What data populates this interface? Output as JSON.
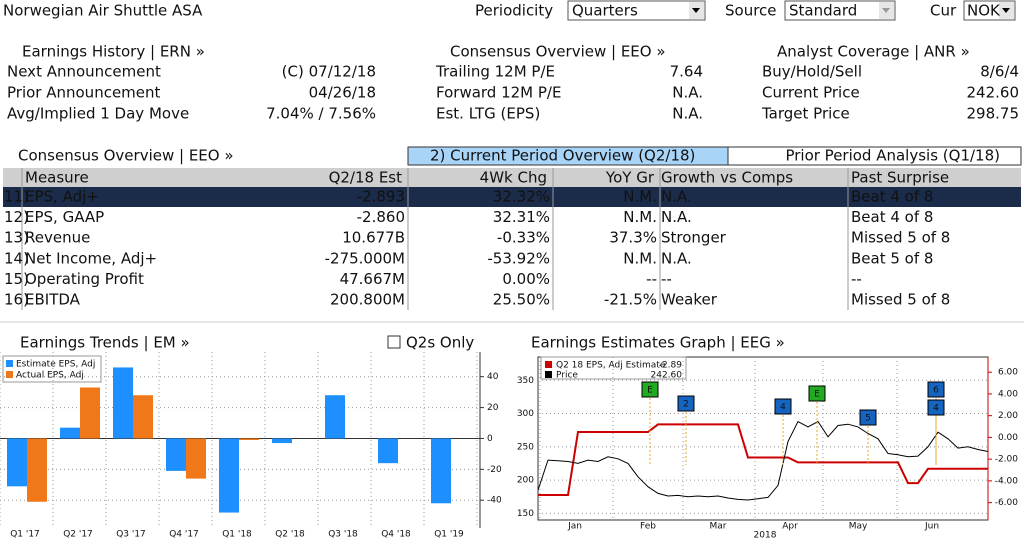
{
  "header": {
    "title": "Norwegian Air Shuttle ASA",
    "periodicity_label": "Periodicity",
    "periodicity": "Quarters",
    "source_label": "Source",
    "source": "Standard",
    "cur_label": "Cur",
    "cur": "NOK"
  },
  "sections": [
    {
      "title": "Earnings History | ERN »",
      "rows": [
        [
          "Next Announcement",
          "(C) 07/12/18"
        ],
        [
          "Prior Announcement",
          "04/26/18"
        ],
        [
          "Avg/Implied 1 Day Move",
          "7.04% / 7.56%"
        ]
      ]
    },
    {
      "title": "Consensus Overview | EEO »",
      "rows": [
        [
          "Trailing 12M P/E",
          "7.64"
        ],
        [
          "Forward 12M P/E",
          "N.A."
        ],
        [
          "Est. LTG (EPS)",
          "N.A."
        ]
      ]
    },
    {
      "title": "Analyst Coverage | ANR »",
      "rows": [
        [
          "Buy/Hold/Sell",
          "8/6/4"
        ],
        [
          "Current Price",
          "242.60"
        ],
        [
          "Target Price",
          "298.75"
        ]
      ]
    }
  ],
  "table": {
    "title": "Consensus Overview | EEO »",
    "tabs": [
      "2) Current Period Overview (Q2/18)",
      "Prior Period Analysis (Q1/18)"
    ],
    "columns": [
      "Measure",
      "Q2/18 Est",
      "4Wk Chg",
      "YoY Gr",
      "Growth vs Comps",
      "Past Surprise"
    ],
    "rows": [
      {
        "num": "11)",
        "cells": [
          "EPS, Adj+",
          "-2.893",
          "32.32%",
          "N.M.",
          "N.A.",
          "Beat 4 of 8"
        ]
      },
      {
        "num": "12)",
        "cells": [
          "EPS, GAAP",
          "-2.860",
          "32.31%",
          "N.M.",
          "N.A.",
          "Beat 4 of 8"
        ]
      },
      {
        "num": "13)",
        "cells": [
          "Revenue",
          "10.677B",
          "-0.33%",
          "37.3%",
          "Stronger",
          "Missed 5 of 8"
        ]
      },
      {
        "num": "14)",
        "cells": [
          "Net Income, Adj+",
          "-275.000M",
          "-53.92%",
          "N.M.",
          "N.A.",
          "Beat 5 of 8"
        ]
      },
      {
        "num": "15)",
        "cells": [
          "Operating Profit",
          "47.667M",
          "0.00%",
          "--",
          "--",
          "--"
        ]
      },
      {
        "num": "16)",
        "cells": [
          "EBITDA",
          "200.800M",
          "25.50%",
          "-21.5%",
          "Weaker",
          "Missed 5 of 8"
        ]
      }
    ]
  },
  "chart_data": [
    {
      "type": "bar",
      "title": "Earnings Trends | EM »",
      "option": "Q2s Only",
      "categories": [
        "Q1 '17",
        "Q2 '17",
        "Q3 '17",
        "Q4 '17",
        "Q1 '18",
        "Q2 '18",
        "Q3 '18",
        "Q4 '18",
        "Q1 '19"
      ],
      "series": [
        {
          "name": "Estimate EPS, Adj",
          "color": "#1e8fff",
          "values": [
            -31,
            7,
            46,
            -21,
            -48,
            -3,
            28,
            -16,
            -42
          ]
        },
        {
          "name": "Actual EPS, Adj",
          "color": "#f07818",
          "values": [
            -41,
            33,
            28,
            -26,
            -1,
            null,
            null,
            null,
            null
          ]
        }
      ],
      "ylim": [
        -58,
        56
      ],
      "yticks": [
        40,
        20,
        0,
        -20,
        -40
      ],
      "grid": true
    },
    {
      "type": "line",
      "title": "Earnings Estimates Graph | EEG »",
      "xtick_labels": [
        "Jan",
        "Feb",
        "Mar",
        "Apr",
        "May",
        "Jun"
      ],
      "year_label": "2018",
      "series": [
        {
          "name": "Q2 18 EPS, Adj Estimate",
          "legend_value": "-2.89",
          "color": "#cc0000",
          "axis": "y2",
          "values": [
            -5.3,
            -5.3,
            -5.3,
            -5.3,
            0.5,
            0.5,
            0.5,
            0.5,
            0.5,
            0.5,
            0.5,
            0.5,
            1.2,
            1.2,
            1.2,
            1.2,
            1.2,
            1.2,
            1.2,
            1.2,
            1.2,
            -1.85,
            -1.85,
            -1.85,
            -1.85,
            -1.85,
            -2.3,
            -2.3,
            -2.3,
            -2.3,
            -2.3,
            -2.3,
            -2.3,
            -2.3,
            -2.3,
            -2.3,
            -2.3,
            -4.2,
            -4.2,
            -2.89,
            -2.89,
            -2.89,
            -2.89,
            -2.89,
            -2.89,
            -2.89
          ]
        },
        {
          "name": "Price",
          "legend_value": "242.60",
          "color": "#000000",
          "values": [
            185,
            230,
            229,
            228,
            225,
            230,
            228,
            235,
            232,
            225,
            205,
            190,
            180,
            176,
            177,
            175,
            176,
            175,
            176,
            173,
            171,
            170,
            172,
            174,
            192,
            258,
            288,
            280,
            288,
            265,
            282,
            284,
            280,
            270,
            262,
            240,
            238,
            235,
            236,
            250,
            272,
            262,
            248,
            250,
            246,
            243
          ]
        }
      ],
      "ylim": [
        140,
        385
      ],
      "yticks": [
        150,
        200,
        250,
        300,
        350
      ],
      "y2lim": [
        -7.6,
        7.4
      ],
      "y2ticks": [
        {
          "value": 6,
          "label": "6.00"
        },
        {
          "value": 4,
          "label": "4.00"
        },
        {
          "value": 2,
          "label": "2.00"
        },
        {
          "value": 0,
          "label": "0.00"
        },
        {
          "value": -2,
          "label": "-2.00"
        },
        {
          "value": -4,
          "label": "-4.00"
        },
        {
          "value": -6,
          "label": "-6.00"
        }
      ],
      "grid": true,
      "annotations": [
        "E",
        "2",
        "4",
        "E",
        "5",
        "6",
        "4"
      ]
    }
  ]
}
